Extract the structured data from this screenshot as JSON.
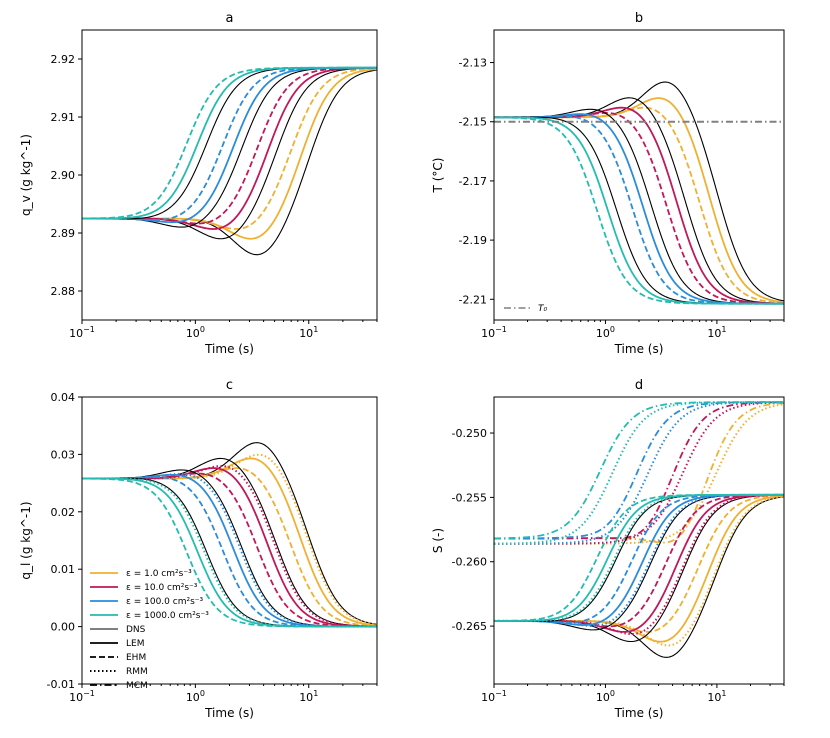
{
  "colors": {
    "e1": "#f0b030",
    "e10": "#c0185a",
    "e100": "#2a8cdc",
    "e1000": "#24bcb0",
    "black": "#000000",
    "t0": "#808080"
  },
  "chart_data": [
    {
      "type": "line",
      "title": "a",
      "xlabel": "Time (s)",
      "ylabel": "q_v (g kg^-1)",
      "xscale": "log",
      "xlim": [
        0.1,
        40
      ],
      "ylim": [
        2.875,
        2.925
      ],
      "yticks": [
        2.88,
        2.89,
        2.9,
        2.91,
        2.92
      ],
      "ytick_labels": [
        "2.88",
        "2.89",
        "2.90",
        "2.91",
        "2.92"
      ],
      "series_start": 2.8925,
      "series_end": 2.9185
    },
    {
      "type": "line",
      "title": "b",
      "xlabel": "Time (s)",
      "ylabel": "T (°C)",
      "xscale": "log",
      "xlim": [
        0.1,
        40
      ],
      "ylim": [
        -2.217,
        -2.119
      ],
      "yticks": [
        -2.13,
        -2.15,
        -2.17,
        -2.19,
        -2.21
      ],
      "ytick_labels": [
        "-2.13",
        "-2.15",
        "-2.17",
        "-2.19",
        "-2.21"
      ],
      "series_start": -2.1485,
      "series_end": -2.2115,
      "reference_line": {
        "name": "T0",
        "value": -2.15,
        "legend_label": "T₀"
      }
    },
    {
      "type": "line",
      "title": "c",
      "xlabel": "Time (s)",
      "ylabel": "q_l (g kg^-1)",
      "xscale": "log",
      "xlim": [
        0.1,
        40
      ],
      "ylim": [
        -0.01,
        0.04
      ],
      "yticks": [
        -0.01,
        0.0,
        0.01,
        0.02,
        0.03,
        0.04
      ],
      "ytick_labels": [
        "-0.01",
        "0.00",
        "0.01",
        "0.02",
        "0.03",
        "0.04"
      ],
      "series_start": 0.0258,
      "series_end": 0.0
    },
    {
      "type": "line",
      "title": "d",
      "xlabel": "Time (s)",
      "ylabel": "S (-)",
      "xscale": "log",
      "xlim": [
        0.1,
        40
      ],
      "ylim": [
        -0.2695,
        -0.2472
      ],
      "yticks": [
        -0.25,
        -0.255,
        -0.26,
        -0.265
      ],
      "ytick_labels": [
        "-0.250",
        "-0.255",
        "-0.260",
        "-0.265"
      ],
      "series_start": -0.2646,
      "series_end": -0.2548,
      "alt_start": -0.2582,
      "alt_end": -0.2476
    }
  ],
  "legend": {
    "epsilon_entries": [
      {
        "label": "ε = 1.0 cm²s⁻³",
        "color_key": "e1"
      },
      {
        "label": "ε = 10.0 cm²s⁻³",
        "color_key": "e10"
      },
      {
        "label": "ε = 100.0 cm²s⁻³",
        "color_key": "e100"
      },
      {
        "label": "ε = 1000.0 cm²s⁻³",
        "color_key": "e1000"
      }
    ],
    "model_entries": [
      {
        "label": "DNS",
        "style": "solid-thin"
      },
      {
        "label": "LEM",
        "style": "solid"
      },
      {
        "label": "EHM",
        "style": "dashed"
      },
      {
        "label": "RMM",
        "style": "dotted"
      },
      {
        "label": "MCM",
        "style": "dashdot"
      }
    ]
  },
  "epsilon_params": [
    {
      "key": "e1",
      "tm": 9.0,
      "bump": 1.0
    },
    {
      "key": "e10",
      "tm": 4.5,
      "bump": 0.6
    },
    {
      "key": "e100",
      "tm": 2.2,
      "bump": 0.3
    },
    {
      "key": "e1000",
      "tm": 1.05,
      "bump": 0.05
    }
  ],
  "x_tick_labels": [
    "10",
    "10"
  ]
}
